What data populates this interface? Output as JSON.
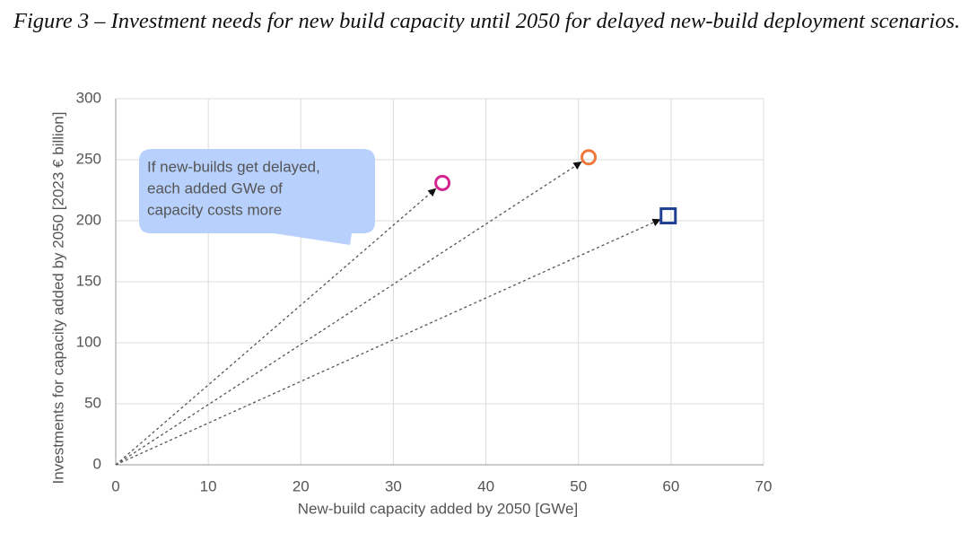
{
  "chart_data": {
    "type": "scatter",
    "title": "Figure 3 – Investment needs for new build capacity until 2050 for delayed new-build deployment scenarios.",
    "annotation": [
      "If new-builds get delayed,",
      "each added GWe of",
      "capacity costs more"
    ],
    "xlabel": "New-build capacity added by 2050 [GWe]",
    "ylabel": "Investments for capacity added by 2050 [2023 € billion]",
    "xlim": [
      0,
      70
    ],
    "xticks": [
      0,
      10,
      20,
      30,
      40,
      50,
      60,
      70
    ],
    "ylim": [
      0,
      300
    ],
    "yticks": [
      0,
      50,
      100,
      150,
      200,
      250,
      300
    ],
    "grid": true,
    "series": [
      {
        "color": "#d4248f",
        "marker": "circle",
        "x": [
          35.3
        ],
        "values": [
          231
        ]
      },
      {
        "color": "#f0783c",
        "marker": "circle",
        "x": [
          51.1
        ],
        "values": [
          252
        ]
      },
      {
        "color": "#1f3f94",
        "marker": "square",
        "x": [
          59.7
        ],
        "values": [
          204
        ]
      }
    ]
  }
}
